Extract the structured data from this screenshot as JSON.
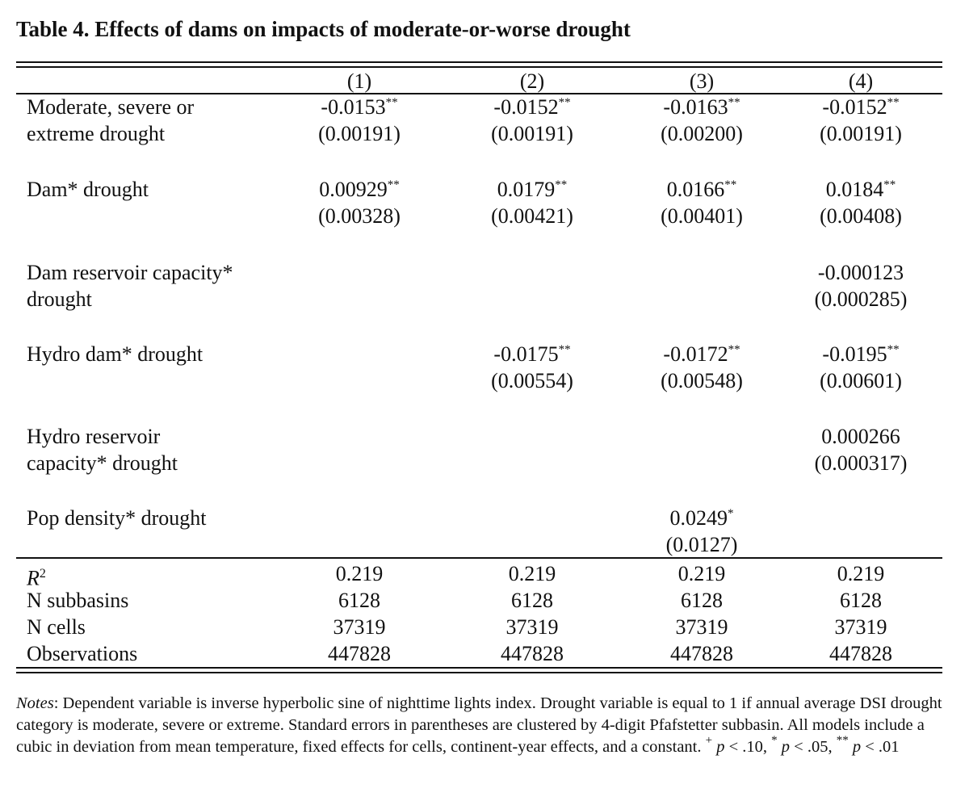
{
  "title": "Table 4.  Effects of dams on impacts of moderate-or-worse drought",
  "columns": [
    "(1)",
    "(2)",
    "(3)",
    "(4)"
  ],
  "rows": [
    {
      "label": [
        "Moderate, severe or",
        "extreme drought"
      ],
      "cells": [
        {
          "coef": "-0.0153",
          "stars": "**",
          "se": "(0.00191)"
        },
        {
          "coef": "-0.0152",
          "stars": "**",
          "se": "(0.00191)"
        },
        {
          "coef": "-0.0163",
          "stars": "**",
          "se": "(0.00200)"
        },
        {
          "coef": "-0.0152",
          "stars": "**",
          "se": "(0.00191)"
        }
      ]
    },
    {
      "label": [
        "Dam* drought"
      ],
      "cells": [
        {
          "coef": "0.00929",
          "stars": "**",
          "se": "(0.00328)"
        },
        {
          "coef": "0.0179",
          "stars": "**",
          "se": "(0.00421)"
        },
        {
          "coef": "0.0166",
          "stars": "**",
          "se": "(0.00401)"
        },
        {
          "coef": "0.0184",
          "stars": "**",
          "se": "(0.00408)"
        }
      ]
    },
    {
      "label": [
        "Dam reservoir capacity*",
        "drought"
      ],
      "cells": [
        null,
        null,
        null,
        {
          "coef": "-0.000123",
          "stars": "",
          "se": "(0.000285)"
        }
      ]
    },
    {
      "label": [
        "Hydro dam* drought"
      ],
      "cells": [
        null,
        {
          "coef": "-0.0175",
          "stars": "**",
          "se": "(0.00554)"
        },
        {
          "coef": "-0.0172",
          "stars": "**",
          "se": "(0.00548)"
        },
        {
          "coef": "-0.0195",
          "stars": "**",
          "se": "(0.00601)"
        }
      ]
    },
    {
      "label": [
        "Hydro reservoir",
        "capacity* drought"
      ],
      "cells": [
        null,
        null,
        null,
        {
          "coef": "0.000266",
          "stars": "",
          "se": "(0.000317)"
        }
      ]
    },
    {
      "label": [
        "Pop density* drought"
      ],
      "cells": [
        null,
        null,
        {
          "coef": "0.0249",
          "stars": "*",
          "se": "(0.0127)"
        },
        null
      ]
    }
  ],
  "stats": [
    {
      "label": "R",
      "sup": "2",
      "values": [
        "0.219",
        "0.219",
        "0.219",
        "0.219"
      ]
    },
    {
      "label": "N subbasins",
      "sup": "",
      "values": [
        "6128",
        "6128",
        "6128",
        "6128"
      ]
    },
    {
      "label": "N cells",
      "sup": "",
      "values": [
        "37319",
        "37319",
        "37319",
        "37319"
      ]
    },
    {
      "label": "Observations",
      "sup": "",
      "values": [
        "447828",
        "447828",
        "447828",
        "447828"
      ]
    }
  ],
  "notes": {
    "lead": "Notes",
    "text": ": Dependent variable is inverse hyperbolic sine of nighttime lights index. Drought variable is equal to 1 if annual average DSI drought category is moderate, severe or extreme. Standard errors in parentheses are clustered by 4-digit Pfafstetter subbasin. All models include a cubic in deviation from mean temperature, fixed effects for cells, continent-year effects, and a constant. ",
    "sig_levels": [
      {
        "symbol": "+",
        "p": "p",
        "text": " < .10, "
      },
      {
        "symbol": "*",
        "p": "p",
        "text": " < .05, "
      },
      {
        "symbol": "**",
        "p": "p",
        "text": " < .01"
      }
    ]
  }
}
